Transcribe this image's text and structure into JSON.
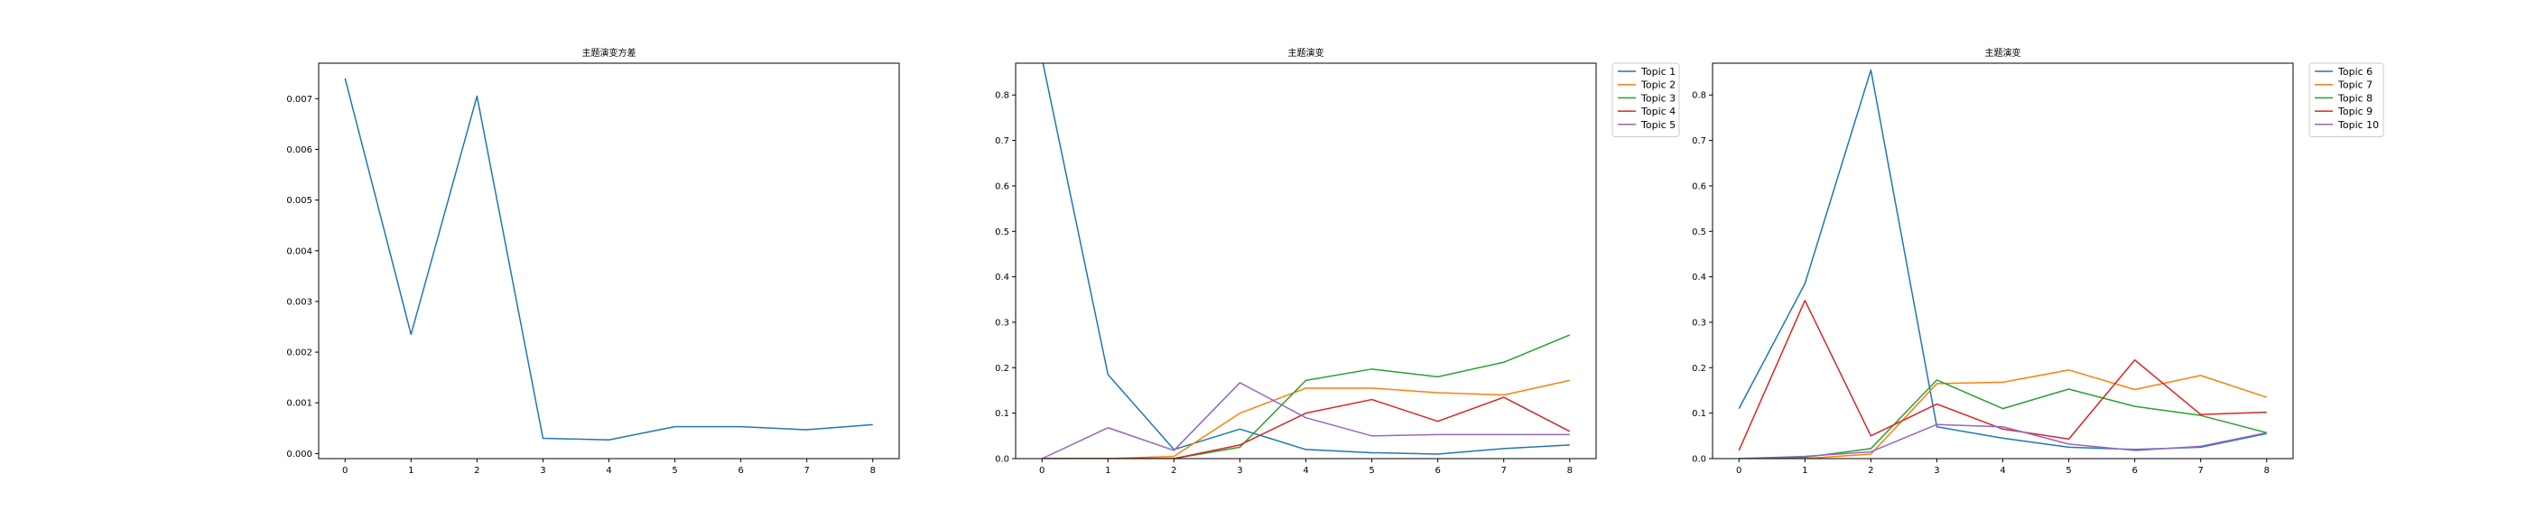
{
  "chart_data": [
    {
      "type": "line",
      "title": "主题演变方差",
      "xlabel": "",
      "ylabel": "",
      "x": [
        0,
        1,
        2,
        3,
        4,
        5,
        6,
        7,
        8
      ],
      "xticks": [
        "0",
        "1",
        "2",
        "3",
        "4",
        "5",
        "6",
        "7",
        "8"
      ],
      "xlim": [
        -0.4,
        8.4
      ],
      "ylim": [
        -0.0001,
        0.0077
      ],
      "yticks": [
        0.0,
        0.001,
        0.002,
        0.003,
        0.004,
        0.005,
        0.006,
        0.007
      ],
      "ytick_labels": [
        "0.000",
        "0.001",
        "0.002",
        "0.003",
        "0.004",
        "0.005",
        "0.006",
        "0.007"
      ],
      "grid": false,
      "legend": "none",
      "series": [
        {
          "name": "",
          "color": "#1f77b4",
          "values": [
            0.0074,
            0.00235,
            0.00705,
            0.0003,
            0.00027,
            0.00053,
            0.00053,
            0.00047,
            0.00057
          ]
        }
      ]
    },
    {
      "type": "line",
      "title": "主题演变",
      "xlabel": "",
      "ylabel": "",
      "x": [
        0,
        1,
        2,
        3,
        4,
        5,
        6,
        7,
        8
      ],
      "xticks": [
        "0",
        "1",
        "2",
        "3",
        "4",
        "5",
        "6",
        "7",
        "8"
      ],
      "xlim": [
        -0.4,
        8.4
      ],
      "ylim": [
        0,
        0.87
      ],
      "yticks": [
        0.0,
        0.1,
        0.2,
        0.3,
        0.4,
        0.5,
        0.6,
        0.7,
        0.8
      ],
      "ytick_labels": [
        "0.0",
        "0.1",
        "0.2",
        "0.3",
        "0.4",
        "0.5",
        "0.6",
        "0.7",
        "0.8"
      ],
      "grid": false,
      "legend": "outside-top-right",
      "series": [
        {
          "name": "Topic 1",
          "color": "#1f77b4",
          "values": [
            0.88,
            0.185,
            0.02,
            0.065,
            0.02,
            0.013,
            0.01,
            0.022,
            0.03
          ]
        },
        {
          "name": "Topic 2",
          "color": "#ff7f0e",
          "values": [
            0.0,
            0.0,
            0.005,
            0.1,
            0.155,
            0.155,
            0.145,
            0.14,
            0.172
          ]
        },
        {
          "name": "Topic 3",
          "color": "#2ca02c",
          "values": [
            0.0,
            0.0,
            0.0,
            0.025,
            0.172,
            0.197,
            0.18,
            0.212,
            0.272
          ]
        },
        {
          "name": "Topic 4",
          "color": "#d62728",
          "values": [
            0.0,
            0.0,
            0.0,
            0.03,
            0.1,
            0.13,
            0.082,
            0.135,
            0.06
          ]
        },
        {
          "name": "Topic 5",
          "color": "#9467bd",
          "values": [
            0.0,
            0.068,
            0.018,
            0.167,
            0.09,
            0.05,
            0.053,
            0.053,
            0.053
          ]
        }
      ]
    },
    {
      "type": "line",
      "title": "主题演变",
      "xlabel": "",
      "ylabel": "",
      "x": [
        0,
        1,
        2,
        3,
        4,
        5,
        6,
        7,
        8
      ],
      "xticks": [
        "0",
        "1",
        "2",
        "3",
        "4",
        "5",
        "6",
        "7",
        "8"
      ],
      "xlim": [
        -0.4,
        8.4
      ],
      "ylim": [
        0,
        0.87
      ],
      "yticks": [
        0.0,
        0.1,
        0.2,
        0.3,
        0.4,
        0.5,
        0.6,
        0.7,
        0.8
      ],
      "ytick_labels": [
        "0.0",
        "0.1",
        "0.2",
        "0.3",
        "0.4",
        "0.5",
        "0.6",
        "0.7",
        "0.8"
      ],
      "grid": false,
      "legend": "outside-top-right",
      "series": [
        {
          "name": "Topic 6",
          "color": "#1f77b4",
          "values": [
            0.11,
            0.385,
            0.855,
            0.07,
            0.045,
            0.025,
            0.02,
            0.025,
            0.055
          ]
        },
        {
          "name": "Topic 7",
          "color": "#ff7f0e",
          "values": [
            0.0,
            0.0,
            0.01,
            0.165,
            0.168,
            0.195,
            0.152,
            0.183,
            0.135
          ]
        },
        {
          "name": "Topic 8",
          "color": "#2ca02c",
          "values": [
            0.0,
            0.003,
            0.022,
            0.173,
            0.11,
            0.153,
            0.115,
            0.095,
            0.057
          ]
        },
        {
          "name": "Topic 9",
          "color": "#d62728",
          "values": [
            0.018,
            0.348,
            0.05,
            0.12,
            0.065,
            0.043,
            0.217,
            0.097,
            0.102
          ]
        },
        {
          "name": "Topic 10",
          "color": "#9467bd",
          "values": [
            0.0,
            0.005,
            0.015,
            0.075,
            0.07,
            0.032,
            0.018,
            0.027,
            0.057
          ]
        }
      ]
    }
  ]
}
